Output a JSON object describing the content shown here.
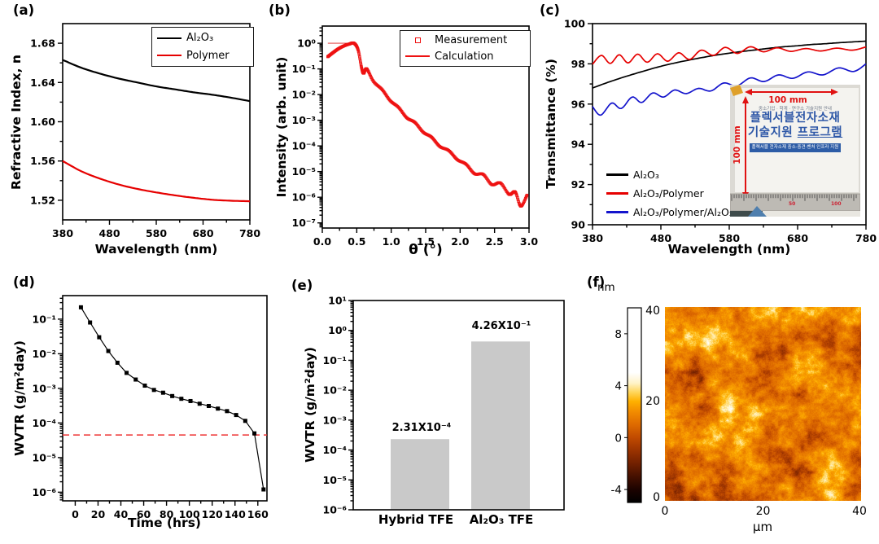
{
  "figure": {
    "background": "#ffffff",
    "accent_red": "#e60000",
    "accent_blue": "#1414cc",
    "bar_gray": "#c9c9c9"
  },
  "panels": {
    "a": {
      "label": "(a)",
      "legend": [
        {
          "label": "Al₂O₃",
          "color": "#000000"
        },
        {
          "label": "Polymer",
          "color": "#e60000"
        }
      ]
    },
    "b": {
      "label": "(b)",
      "legend": [
        {
          "label": "Measurement",
          "marker": "open-square",
          "color": "#ee1111"
        },
        {
          "label": "Calculation",
          "marker": "line",
          "color": "#ee1111"
        }
      ]
    },
    "c": {
      "label": "(c)",
      "legend": [
        {
          "label": "Al₂O₃",
          "color": "#000000"
        },
        {
          "label": "Al₂O₃/Polymer",
          "color": "#e60000"
        },
        {
          "label": "Al₂O₃/Polymer/Al₂O₃",
          "color": "#1414cc"
        }
      ],
      "inset": {
        "arrow_h_label": "100 mm",
        "arrow_v_label": "100 mm",
        "header": "중소기업 · 학계 · 연구소 기술지원 안내",
        "title_line1": "플렉서블전자소재",
        "title_line2_a": "기술지원",
        "title_line2_b": "프로그램",
        "banner": "플렉서블 전자소재 중소·중견·벤처 인프라 지원",
        "ruler_labels": [
          "50",
          "100"
        ]
      }
    },
    "d": {
      "label": "(d)"
    },
    "e": {
      "label": "(e)"
    },
    "f": {
      "label": "(f)",
      "unit_label": "nm",
      "x_unit_label": "µm"
    }
  },
  "chart_data": [
    {
      "panel": "a",
      "type": "line",
      "xlabel": "Wavelength (nm)",
      "ylabel": "Refractive Index, n",
      "xlim": [
        380,
        780
      ],
      "ylim": [
        1.5,
        1.7
      ],
      "xticks": [
        380,
        480,
        580,
        680,
        780
      ],
      "xminor": [
        430,
        530,
        630,
        730
      ],
      "yticks": [
        1.68,
        1.64,
        1.6,
        1.56,
        1.52
      ],
      "yminor": [
        1.66,
        1.62,
        1.58,
        1.54
      ],
      "x": [
        380,
        420,
        460,
        500,
        540,
        580,
        620,
        660,
        700,
        740,
        780
      ],
      "series": [
        {
          "name": "Al₂O₃",
          "color": "#000000",
          "values": [
            1.663,
            1.655,
            1.649,
            1.644,
            1.64,
            1.636,
            1.633,
            1.63,
            1.6275,
            1.6245,
            1.621
          ]
        },
        {
          "name": "Polymer",
          "color": "#e60000",
          "values": [
            1.56,
            1.5495,
            1.542,
            1.536,
            1.5315,
            1.528,
            1.525,
            1.5225,
            1.5205,
            1.5195,
            1.519
          ]
        }
      ]
    },
    {
      "panel": "b",
      "type": "scatter",
      "xlabel": "θ (°)",
      "ylabel": "Intensity (arb. unit)",
      "xlim": [
        0,
        3.0
      ],
      "xticks": [
        0.0,
        0.5,
        1.0,
        1.5,
        2.0,
        2.5,
        3.0
      ],
      "xminor_step": 0.25,
      "ylog_ticks": [
        0,
        -1,
        -2,
        -3,
        -4,
        -5,
        -6,
        -7
      ],
      "ylim_log": [
        -7.2,
        0.67
      ],
      "series": [
        {
          "name": "Measurement",
          "marker": "open-square",
          "color": "#ee1111",
          "points": [
            [
              0.08,
              0.3
            ],
            [
              0.15,
              0.42
            ],
            [
              0.23,
              0.6
            ],
            [
              0.31,
              0.78
            ],
            [
              0.39,
              0.93
            ],
            [
              0.46,
              1.0
            ],
            [
              0.52,
              0.55
            ],
            [
              0.57,
              0.11
            ],
            [
              0.6,
              0.068
            ],
            [
              0.645,
              0.1
            ],
            [
              0.745,
              0.032
            ],
            [
              0.87,
              0.0155
            ],
            [
              0.985,
              0.0058
            ],
            [
              1.105,
              0.0032
            ],
            [
              1.225,
              0.00125
            ],
            [
              1.345,
              0.00082
            ],
            [
              1.465,
              0.00034
            ],
            [
              1.585,
              0.00022
            ],
            [
              1.705,
              9.5e-05
            ],
            [
              1.835,
              6.6e-05
            ],
            [
              1.96,
              2.9e-05
            ],
            [
              2.085,
              1.95e-05
            ],
            [
              2.21,
              8.2e-06
            ],
            [
              2.335,
              7.8e-06
            ],
            [
              2.46,
              3.1e-06
            ],
            [
              2.585,
              3.6e-06
            ],
            [
              2.71,
              1.3e-06
            ],
            [
              2.8,
              1.6e-06
            ],
            [
              2.88,
              4.5e-07
            ],
            [
              2.97,
              1.2e-06
            ]
          ]
        },
        {
          "name": "Calculation",
          "style": "line",
          "color": "#dd2222",
          "note": "flat at 1.0 below θ≈0.46 then follows measurement curve"
        }
      ]
    },
    {
      "panel": "c",
      "type": "line",
      "xlabel": "Wavelength (nm)",
      "ylabel": "Transmittance (%)",
      "xlim": [
        380,
        780
      ],
      "ylim": [
        90,
        100
      ],
      "xticks": [
        380,
        480,
        580,
        680,
        780
      ],
      "xminor": [
        430,
        530,
        630,
        730
      ],
      "yticks": [
        100,
        98,
        96,
        94,
        92,
        90
      ],
      "yminor": [
        99,
        97,
        95,
        93,
        91
      ],
      "series": [
        {
          "name": "Al₂O₃",
          "color": "#000000",
          "x": [
            380,
            400,
            420,
            440,
            460,
            480,
            500,
            520,
            540,
            560,
            580,
            600,
            620,
            640,
            660,
            680,
            700,
            720,
            740,
            760,
            780
          ],
          "values": [
            96.8,
            97.05,
            97.28,
            97.49,
            97.69,
            97.88,
            98.04,
            98.18,
            98.31,
            98.43,
            98.53,
            98.62,
            98.7,
            98.78,
            98.85,
            98.9,
            98.96,
            99.0,
            99.05,
            99.09,
            99.13
          ]
        },
        {
          "name": "Al₂O₃/Polymer",
          "color": "#e60000",
          "points": [
            [
              380,
              97.98
            ],
            [
              393,
              98.42
            ],
            [
              406,
              98.02
            ],
            [
              419,
              98.45
            ],
            [
              432,
              98.05
            ],
            [
              446,
              98.48
            ],
            [
              460,
              98.08
            ],
            [
              475,
              98.5
            ],
            [
              490,
              98.13
            ],
            [
              506,
              98.55
            ],
            [
              522,
              98.22
            ],
            [
              539,
              98.68
            ],
            [
              557,
              98.42
            ],
            [
              574,
              98.82
            ],
            [
              592,
              98.52
            ],
            [
              611,
              98.85
            ],
            [
              630,
              98.6
            ],
            [
              650,
              98.8
            ],
            [
              670,
              98.62
            ],
            [
              692,
              98.76
            ],
            [
              714,
              98.64
            ],
            [
              737,
              98.78
            ],
            [
              760,
              98.68
            ],
            [
              780,
              98.84
            ]
          ]
        },
        {
          "name": "Al₂O₃/Polymer/Al₂O₃",
          "color": "#1414cc",
          "points": [
            [
              380,
              95.88
            ],
            [
              392,
              95.45
            ],
            [
              408,
              96.05
            ],
            [
              422,
              95.78
            ],
            [
              438,
              96.35
            ],
            [
              452,
              96.08
            ],
            [
              468,
              96.55
            ],
            [
              484,
              96.35
            ],
            [
              500,
              96.7
            ],
            [
              517,
              96.52
            ],
            [
              535,
              96.78
            ],
            [
              553,
              96.65
            ],
            [
              572,
              97.05
            ],
            [
              591,
              96.9
            ],
            [
              611,
              97.3
            ],
            [
              631,
              97.12
            ],
            [
              652,
              97.45
            ],
            [
              673,
              97.28
            ],
            [
              695,
              97.6
            ],
            [
              717,
              97.45
            ],
            [
              740,
              97.8
            ],
            [
              762,
              97.62
            ],
            [
              780,
              98.0
            ]
          ]
        }
      ]
    },
    {
      "panel": "d",
      "type": "line-scatter",
      "xlabel": "Time (hrs)",
      "ylabel": "WVTR (g/m²day)",
      "xlim": [
        -11,
        168
      ],
      "xticks": [
        0,
        20,
        40,
        60,
        80,
        100,
        120,
        140,
        160
      ],
      "ylog_ticks": [
        -1,
        -2,
        -3,
        -4,
        -5,
        -6
      ],
      "ylim_log": [
        -6.25,
        -0.32
      ],
      "x": [
        5,
        13,
        21,
        29,
        37,
        45,
        53,
        61,
        69,
        77,
        85,
        93,
        101,
        109,
        117,
        125,
        133,
        141,
        149,
        157,
        165
      ],
      "values": [
        0.22,
        0.08,
        0.03,
        0.012,
        0.0055,
        0.0028,
        0.0018,
        0.0012,
        0.0009,
        0.00075,
        0.0006,
        0.0005,
        0.00043,
        0.00036,
        0.00031,
        0.00026,
        0.00022,
        0.00017,
        0.000115,
        5e-05,
        1.2e-06
      ],
      "reference_line": 4.5e-05,
      "reference_style": "red-dashed",
      "reference_color": "#ee3333"
    },
    {
      "panel": "e",
      "type": "bar",
      "ylabel": "WVTR (g/m²day)",
      "categories": [
        "Hybrid TFE",
        "Al₂O₃ TFE"
      ],
      "values": [
        0.000231,
        0.426
      ],
      "annotations": [
        "2.31X10⁻⁴",
        "4.26X10⁻¹"
      ],
      "ylog_ticks": [
        1,
        0,
        -1,
        -2,
        -3,
        -4,
        -5,
        -6
      ],
      "bar_color": "#c9c9c9"
    },
    {
      "panel": "f",
      "type": "heatmap",
      "xlabel": "µm",
      "xticks": [
        0,
        20,
        40
      ],
      "yticks": [
        40,
        20,
        0
      ],
      "size_um": 40,
      "colorbar": {
        "unit": "nm",
        "range": [
          -5,
          10
        ],
        "ticks": [
          8,
          4,
          0,
          -4
        ],
        "colormap": [
          [
            -5,
            "#000000"
          ],
          [
            -4,
            "#1c0300"
          ],
          [
            -3,
            "#451000"
          ],
          [
            -2,
            "#712000"
          ],
          [
            -1,
            "#9a3300"
          ],
          [
            0,
            "#c04a00"
          ],
          [
            1,
            "#de6a00"
          ],
          [
            2,
            "#f28c00"
          ],
          [
            2.8,
            "#ffb100"
          ],
          [
            3.5,
            "#ffd65c"
          ],
          [
            4.2,
            "#fff3c8"
          ],
          [
            5,
            "#ffffff"
          ],
          [
            10,
            "#ffffff"
          ]
        ]
      },
      "description": "AFM surface topography, 40×40 µm, granular orange texture"
    }
  ]
}
